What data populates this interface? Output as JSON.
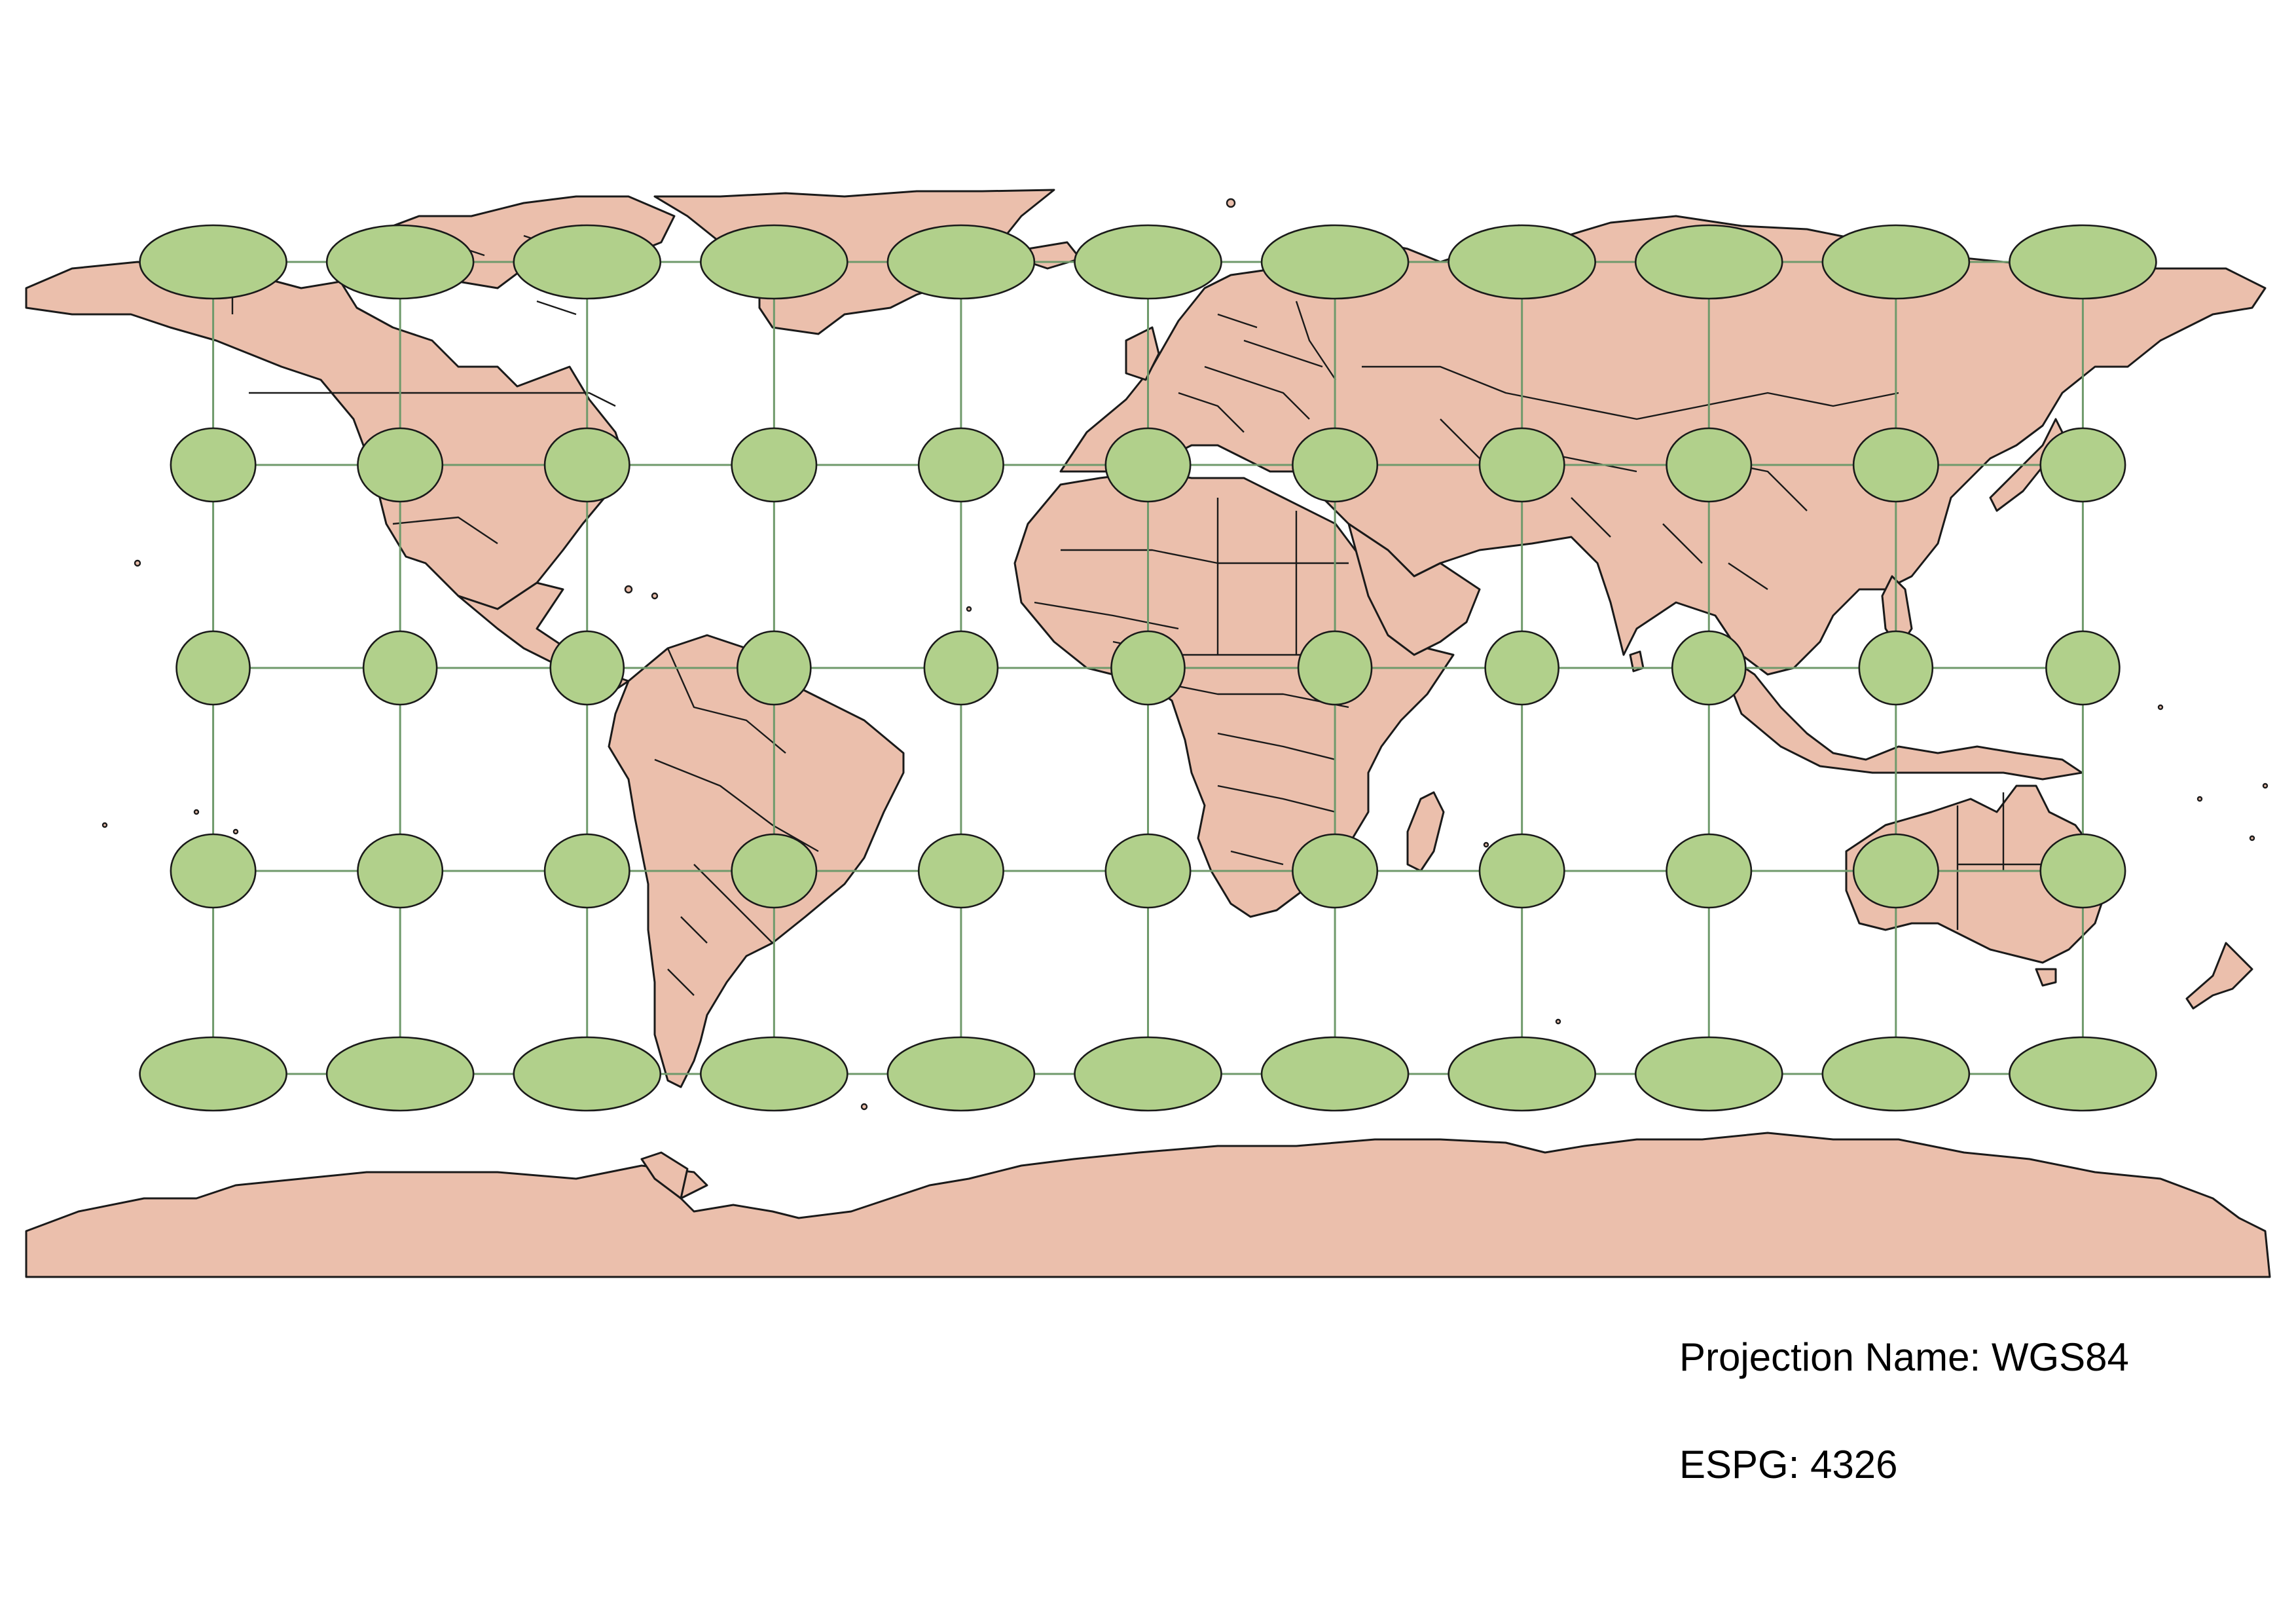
{
  "caption": {
    "projection_line": "Projection Name: WGS84",
    "epsg_line": "ESPG: 4326"
  },
  "map": {
    "layers": [
      "country-boundaries",
      "graticule",
      "tissot-indicatrix"
    ],
    "colors": {
      "land": "#ebbfac",
      "border": "#1a1a1a",
      "graticule": "#6f9a6b",
      "indicatrix": "#b1d08b",
      "background": "#ffffff"
    },
    "graticule": {
      "longitudes": [
        -150,
        -120,
        -90,
        -60,
        -30,
        0,
        30,
        60,
        90,
        120,
        150
      ],
      "latitudes": [
        60,
        30,
        0,
        -30,
        -60
      ]
    }
  }
}
